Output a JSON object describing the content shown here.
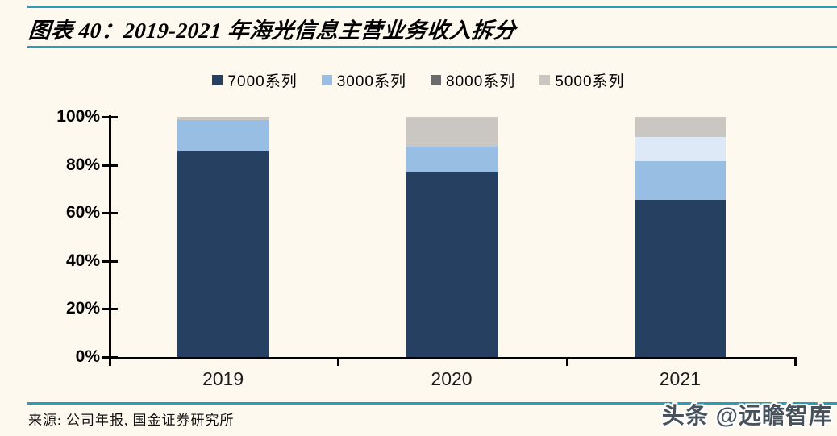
{
  "header": {
    "title": "图表 40：2019-2021 年海光信息主营业务收入拆分"
  },
  "footer": {
    "source": "来源: 公司年报, 国金证券研究所",
    "watermark": "头条 @远瞻智库"
  },
  "colors": {
    "background": "#fdf9ee",
    "rule_teal": "#2a9dbd",
    "axis_black": "#000000",
    "series_7000": "#254061",
    "series_3000": "#98bee3",
    "series_8000_legend": "#6b6b6b",
    "series_8000_bar": "#dde9f6",
    "series_5000": "#cac7c3",
    "watermark_text": "#47525d"
  },
  "chart_data": {
    "type": "bar",
    "stacked": true,
    "title": "2019-2021 年海光信息主营业务收入拆分",
    "categories": [
      "2019",
      "2020",
      "2021"
    ],
    "series": [
      {
        "name": "7000系列",
        "legend_color": "#254061",
        "bar_color": "#254061",
        "values": [
          86.0,
          77.0,
          65.3
        ]
      },
      {
        "name": "3000系列",
        "legend_color": "#98bee3",
        "bar_color": "#98bee3",
        "values": [
          12.5,
          10.5,
          16.2
        ]
      },
      {
        "name": "8000系列",
        "legend_color": "#6b6b6b",
        "bar_color": "#dde9f6",
        "values": [
          0.0,
          0.0,
          10.2
        ]
      },
      {
        "name": "5000系列",
        "legend_color": "#cac7c3",
        "bar_color": "#cac7c3",
        "values": [
          1.5,
          12.5,
          8.3
        ]
      }
    ],
    "xlabel": "",
    "ylabel": "",
    "y_ticks": [
      "100%",
      "80%",
      "60%",
      "40%",
      "20%",
      "0%"
    ],
    "ylim": [
      0,
      100
    ],
    "unit": "%",
    "grid": false,
    "legend_position": "top-center"
  }
}
